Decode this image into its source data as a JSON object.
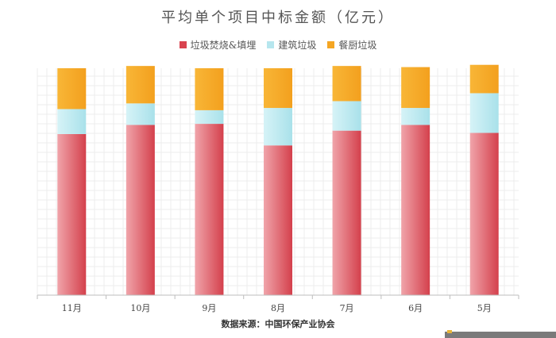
{
  "chart_data": {
    "type": "bar",
    "stacked": true,
    "title": "平均单个项目中标金额（亿元）",
    "categories": [
      "11月",
      "10月",
      "9月",
      "8月",
      "7月",
      "6月",
      "5月"
    ],
    "series": [
      {
        "name": "垃圾焚烧&填埋",
        "color": "#d9434f",
        "values": [
          71,
          75,
          75.5,
          66,
          72.5,
          75,
          71.5
        ]
      },
      {
        "name": "建筑垃圾",
        "color": "#b6e6ee",
        "values": [
          11,
          9.5,
          6,
          16.5,
          13,
          7.5,
          17.5
        ]
      },
      {
        "name": "餐厨垃圾",
        "color": "#f5a623",
        "values": [
          18,
          16.5,
          18.5,
          17.5,
          15.5,
          18,
          12.5
        ]
      }
    ],
    "ylim": [
      0,
      100
    ],
    "grid": true,
    "legend_position": "top-center"
  },
  "source": "数据来源：中国环保产业协会"
}
